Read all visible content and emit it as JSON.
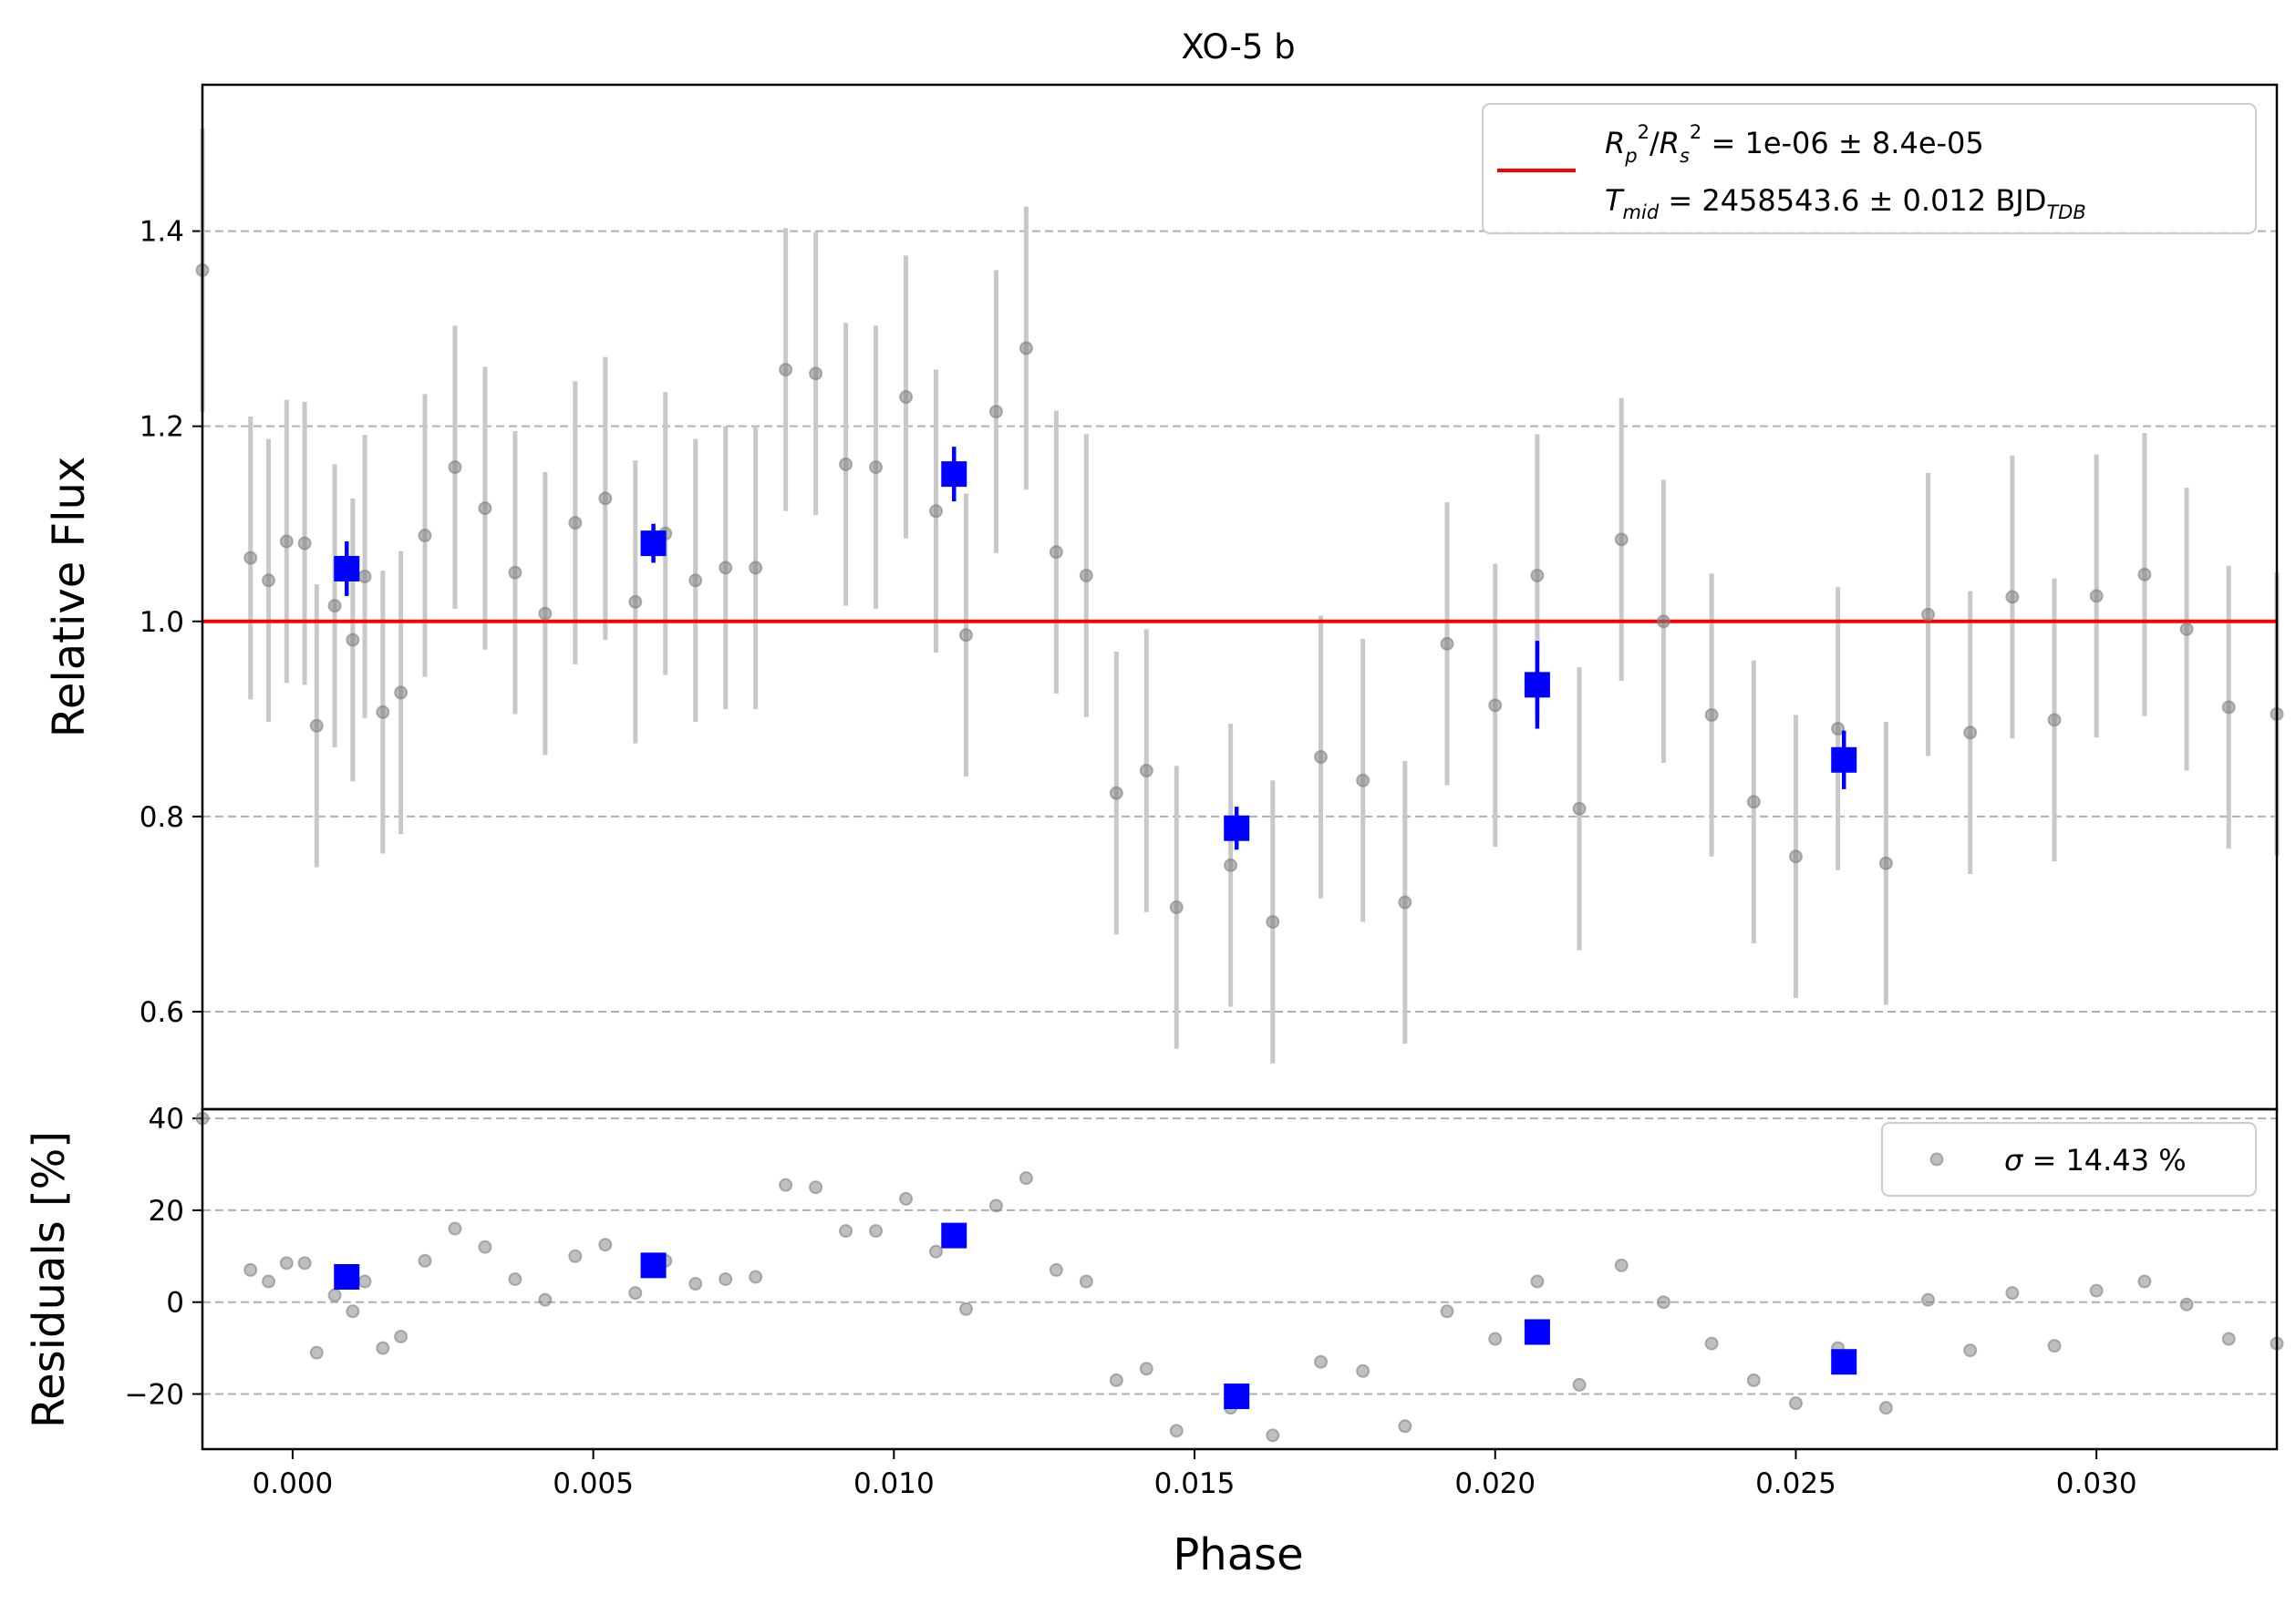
{
  "chart_data": [
    {
      "type": "scatter",
      "title": "XO-5 b",
      "xlabel": "",
      "ylabel": "Relative Flux",
      "xlim": [
        -0.0015,
        0.033
      ],
      "ylim": [
        0.5,
        1.55
      ],
      "grid": "horizontal dashed",
      "y_ticks": [
        "0.6",
        "0.8",
        "1.0",
        "1.2",
        "1.4"
      ],
      "legend": {
        "placement": "top-right",
        "line_label_1": "= 1e-06 ± 8.4e-05",
        "line_label_2": "= 2458543.6 ± 0.012 BJD",
        "line_label_2_sub": "TDB",
        "symbol_1": "R",
        "symbol_1_sub_p": "p",
        "symbol_1_sub_s": "s",
        "symbol_2": "T",
        "symbol_2_sub": "mid"
      },
      "colors": {
        "data": "#808080",
        "errorbar": "#c8c8c8",
        "binned": "#0000ff",
        "model": "#ff0000"
      },
      "model": {
        "name": "transit model",
        "y": 1.0
      },
      "series": [
        {
          "name": "data",
          "x": [
            -0.0015,
            -0.0007,
            -0.0004,
            -0.0001,
            0.0002,
            0.0004,
            0.0007,
            0.001,
            0.0012,
            0.0015,
            0.0018,
            0.0022,
            0.0027,
            0.0032,
            0.0037,
            0.0042,
            0.0047,
            0.0052,
            0.0057,
            0.0062,
            0.0067,
            0.0072,
            0.0077,
            0.0082,
            0.0087,
            0.0092,
            0.0097,
            0.0102,
            0.0107,
            0.0112,
            0.0117,
            0.0122,
            0.0127,
            0.0132,
            0.0137,
            0.0142,
            0.0147,
            0.0156,
            0.0163,
            0.0171,
            0.0178,
            0.0185,
            0.0192,
            0.02,
            0.0207,
            0.0214,
            0.0221,
            0.0228,
            0.0236,
            0.0243,
            0.025,
            0.0257,
            0.0265,
            0.0272,
            0.0279,
            0.0286,
            0.0293,
            0.03,
            0.0308,
            0.0315,
            0.0322,
            0.033
          ],
          "y": [
            1.36,
            1.065,
            1.042,
            1.082,
            1.08,
            0.893,
            1.016,
            0.981,
            1.046,
            0.907,
            0.927,
            1.088,
            1.158,
            1.116,
            1.05,
            1.008,
            1.101,
            1.126,
            1.02,
            1.09,
            1.042,
            1.055,
            1.055,
            1.258,
            1.254,
            1.161,
            1.158,
            1.23,
            1.113,
            0.986,
            1.215,
            1.28,
            1.071,
            1.047,
            0.824,
            0.847,
            0.707,
            0.75,
            0.692,
            0.861,
            0.837,
            0.712,
            0.977,
            0.914,
            1.047,
            0.808,
            1.084,
            1.0,
            0.904,
            0.815,
            0.759,
            0.89,
            0.752,
            1.007,
            0.886,
            1.025,
            0.899,
            1.026,
            1.048,
            0.992,
            0.912,
            0.905
          ],
          "yerr": 0.145
        },
        {
          "name": "binned",
          "x": [
            0.0009,
            0.006,
            0.011,
            0.0157,
            0.0207,
            0.0258
          ],
          "y": [
            1.054,
            1.08,
            1.151,
            0.788,
            0.935,
            0.858
          ],
          "yerr": [
            0.028,
            0.02,
            0.028,
            0.022,
            0.045,
            0.03
          ]
        }
      ]
    },
    {
      "type": "scatter",
      "title": "",
      "xlabel": "Phase",
      "ylabel": "Residuals [%]",
      "xlim": [
        -0.0015,
        0.033
      ],
      "ylim": [
        -32,
        42
      ],
      "grid": "horizontal dashed",
      "x_ticks": [
        "0.000",
        "0.005",
        "0.010",
        "0.015",
        "0.020",
        "0.025",
        "0.030"
      ],
      "y_ticks": [
        "−20",
        "0",
        "20",
        "40"
      ],
      "legend": {
        "placement": "top-right",
        "label": "= 14.43 %",
        "symbol": "σ"
      },
      "series": [
        {
          "name": "residuals",
          "x": [
            -0.0015,
            -0.0007,
            -0.0004,
            -0.0001,
            0.0002,
            0.0004,
            0.0007,
            0.001,
            0.0012,
            0.0015,
            0.0018,
            0.0022,
            0.0027,
            0.0032,
            0.0037,
            0.0042,
            0.0047,
            0.0052,
            0.0057,
            0.0062,
            0.0067,
            0.0072,
            0.0077,
            0.0082,
            0.0087,
            0.0092,
            0.0097,
            0.0102,
            0.0107,
            0.0112,
            0.0117,
            0.0122,
            0.0127,
            0.0132,
            0.0137,
            0.0142,
            0.0147,
            0.0156,
            0.0163,
            0.0171,
            0.0178,
            0.0185,
            0.0192,
            0.02,
            0.0207,
            0.0214,
            0.0221,
            0.0228,
            0.0236,
            0.0243,
            0.025,
            0.0257,
            0.0265,
            0.0272,
            0.0279,
            0.0286,
            0.0293,
            0.03,
            0.0308,
            0.0315,
            0.0322,
            0.033
          ],
          "y": [
            40,
            7,
            4.5,
            8.5,
            8.5,
            -11,
            1.5,
            -2,
            4.5,
            -10,
            -7.5,
            9,
            16,
            12,
            5,
            0.5,
            10,
            12.5,
            2,
            9,
            4,
            5,
            5.5,
            25.5,
            25,
            15.5,
            15.5,
            22.5,
            11,
            -1.5,
            21,
            27,
            7,
            4.5,
            -17,
            -14.5,
            -28,
            -23,
            -29,
            -13,
            -15,
            -27,
            -2,
            -8,
            4.5,
            -18,
            8,
            0,
            -9,
            -17,
            -22,
            -10,
            -23,
            0.5,
            -10.5,
            2,
            -9.5,
            2.5,
            4.5,
            -0.5,
            -8,
            -9
          ]
        },
        {
          "name": "binned residuals",
          "x": [
            0.0009,
            0.006,
            0.011,
            0.0157,
            0.0207,
            0.0258
          ],
          "y": [
            5.5,
            8,
            14.5,
            -20.5,
            -6.5,
            -13
          ]
        }
      ]
    }
  ]
}
